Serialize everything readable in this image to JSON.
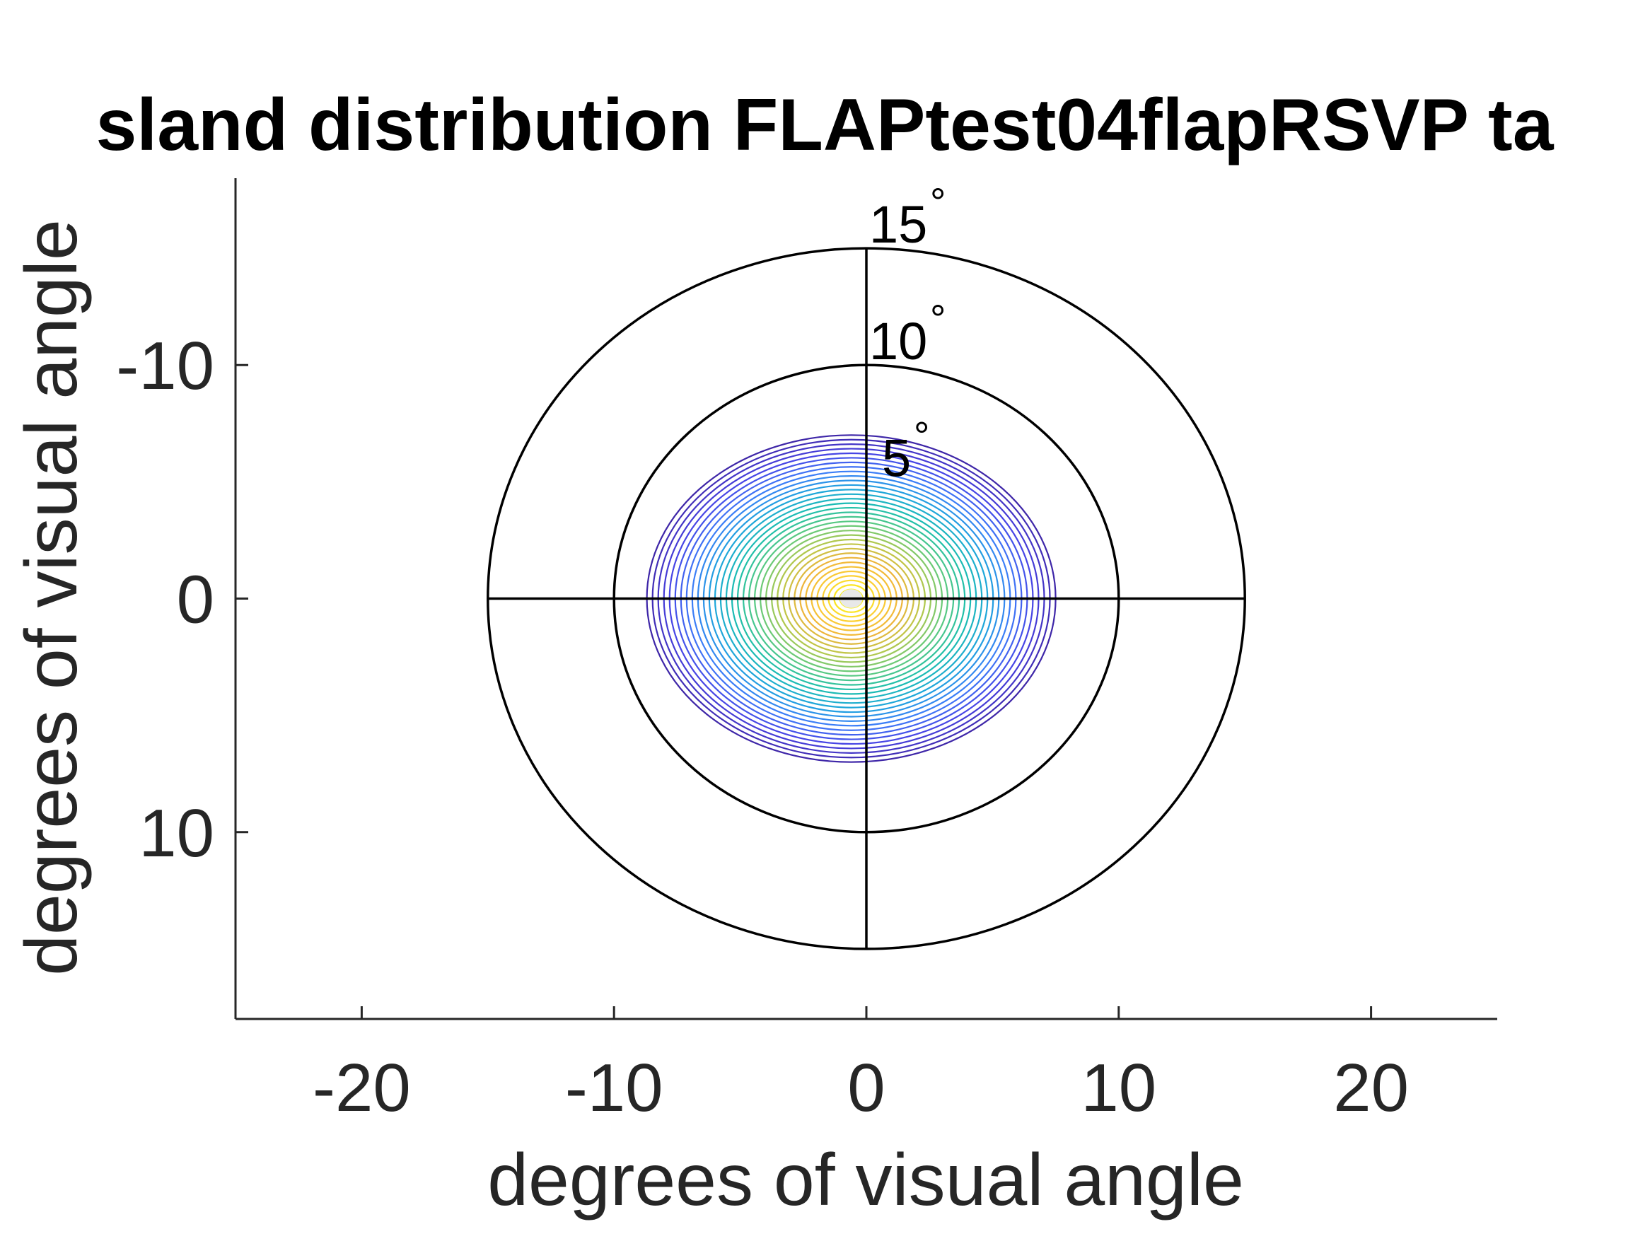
{
  "chart_data": {
    "type": "contour",
    "title": "sland distribution FLAPtest04flapRSVP ta",
    "xlabel": "degrees of visual angle",
    "ylabel": "degrees of visual angle",
    "xlim": [
      -25,
      25
    ],
    "ylim": [
      18,
      -18
    ],
    "x_ticks": [
      -20,
      -10,
      0,
      10,
      20
    ],
    "x_tick_labels": [
      "-20",
      "-10",
      "0",
      "10",
      "20"
    ],
    "y_ticks": [
      -10,
      0,
      10
    ],
    "y_tick_labels": [
      "-10",
      "0",
      "10"
    ],
    "y_axis_reversed": true,
    "grid": false,
    "polar_overlay": {
      "rings": [
        5,
        10,
        15
      ],
      "ring_labels": [
        "5",
        "10",
        "15"
      ],
      "ring_label_unit": "°",
      "drawn_rings": [
        10,
        15
      ],
      "crosshair": true,
      "crosshair_extent": 15
    },
    "distribution": {
      "center": [
        -0.6,
        0.0
      ],
      "outer_radius_x": 8.1,
      "outer_radius_y": 7.0,
      "contour_levels": 36,
      "colormap": [
        "#3e26a8",
        "#4743e4",
        "#3d7cf9",
        "#1fa5dd",
        "#1bbfae",
        "#5fca7d",
        "#b8c84a",
        "#f0b43a",
        "#fcd133",
        "#f9fb15"
      ]
    },
    "colors": {
      "axis": "#262626",
      "overlay": "#000000",
      "background": "#ffffff"
    }
  }
}
